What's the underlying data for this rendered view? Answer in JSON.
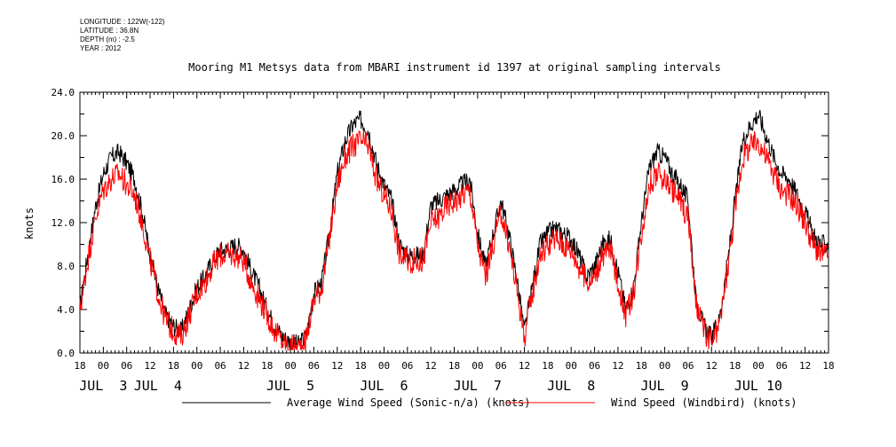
{
  "meta": {
    "longitude": "LONGITUDE : 122W(-122)",
    "latitude": "LATITUDE : 36.8N",
    "depth": "DEPTH (m) : -2.5",
    "year": "YEAR : 2012"
  },
  "chart_data": {
    "type": "line",
    "title": "Mooring M1 Metsys data from MBARI instrument id 1397 at original sampling intervals",
    "ylabel": "knots",
    "xlabel": "",
    "ylim": [
      0,
      24
    ],
    "yticks": [
      "0.0",
      "4.0",
      "8.0",
      "12.0",
      "16.0",
      "20.0",
      "24.0"
    ],
    "xlim_hours_label": "Jul 2 18:00 to Jul 10 18:00, 2012",
    "x_hour_ticks": [
      "18",
      "00",
      "06",
      "12",
      "18",
      "00",
      "06",
      "12",
      "18",
      "00",
      "06",
      "12",
      "18",
      "00",
      "06",
      "12",
      "18",
      "00",
      "06",
      "12",
      "18",
      "00",
      "06",
      "12",
      "18",
      "00",
      "06",
      "12",
      "18",
      "00",
      "06",
      "12",
      "18"
    ],
    "x_day_labels": [
      {
        "text": "JUL  3",
        "hour": 6
      },
      {
        "text": "JUL  4",
        "hour": 20
      },
      {
        "text": "JUL  5",
        "hour": 54
      },
      {
        "text": "JUL  6",
        "hour": 78
      },
      {
        "text": "JUL  7",
        "hour": 102
      },
      {
        "text": "JUL  8",
        "hour": 126
      },
      {
        "text": "JUL  9",
        "hour": 150
      },
      {
        "text": "JUL 10",
        "hour": 174
      }
    ],
    "x_hours_from_jul2_18": [
      0,
      2,
      4,
      6,
      8,
      10,
      12,
      14,
      16,
      18,
      20,
      22,
      24,
      26,
      28,
      30,
      32,
      34,
      36,
      38,
      40,
      42,
      44,
      46,
      48,
      50,
      52,
      54,
      56,
      58,
      60,
      62,
      64,
      66,
      68,
      70,
      72,
      74,
      76,
      78,
      80,
      82,
      84,
      86,
      88,
      90,
      92,
      94,
      96,
      98,
      100,
      102,
      104,
      106,
      108,
      110,
      112,
      114,
      116,
      118,
      120,
      122,
      124,
      126,
      128,
      130,
      132,
      134,
      136,
      138,
      140,
      142,
      144,
      146,
      148,
      150,
      152,
      154,
      156,
      158,
      160,
      162,
      164,
      166,
      168,
      170,
      172,
      174,
      176,
      178,
      180,
      182,
      184,
      186,
      188,
      190,
      192
    ],
    "series": [
      {
        "name": "Average Wind Speed (Sonic-n/a) (knots)",
        "color": "#000000",
        "values": [
          4.2,
          9.0,
          13.5,
          16.5,
          18.0,
          18.5,
          17.5,
          16.0,
          13.0,
          9.0,
          6.0,
          3.5,
          2.5,
          2.0,
          4.0,
          6.0,
          7.0,
          8.5,
          9.5,
          9.5,
          10.0,
          9.5,
          7.5,
          6.0,
          4.0,
          2.5,
          1.5,
          1.0,
          0.8,
          1.5,
          5.5,
          6.5,
          11.0,
          16.5,
          19.5,
          21.0,
          21.5,
          20.5,
          17.5,
          15.5,
          14.0,
          10.0,
          9.0,
          9.0,
          9.0,
          13.5,
          14.0,
          14.5,
          15.0,
          15.5,
          16.0,
          11.0,
          8.0,
          11.0,
          14.0,
          11.0,
          7.0,
          2.0,
          6.0,
          10.0,
          11.0,
          11.5,
          11.0,
          10.5,
          9.0,
          7.0,
          8.0,
          10.0,
          10.5,
          7.5,
          4.0,
          6.0,
          12.0,
          17.0,
          18.5,
          18.0,
          16.5,
          15.5,
          14.0,
          5.0,
          2.5,
          1.5,
          3.0,
          8.0,
          14.0,
          19.5,
          21.0,
          22.0,
          20.0,
          18.0,
          16.5,
          16.0,
          14.5,
          13.0,
          11.0,
          10.0,
          10.0
        ]
      },
      {
        "name": "Wind Speed (Windbird) (knots)",
        "color": "#ff0000",
        "values": [
          4.0,
          8.5,
          12.5,
          15.0,
          16.0,
          16.5,
          15.5,
          14.5,
          12.0,
          8.5,
          5.5,
          3.0,
          2.0,
          1.5,
          3.5,
          5.5,
          6.5,
          8.0,
          9.0,
          9.0,
          9.0,
          8.5,
          6.5,
          5.0,
          3.5,
          2.0,
          1.0,
          0.5,
          0.5,
          1.2,
          5.0,
          6.0,
          10.5,
          15.5,
          18.0,
          19.0,
          19.5,
          19.0,
          16.0,
          14.5,
          13.0,
          9.0,
          8.5,
          8.5,
          8.5,
          12.0,
          12.5,
          13.5,
          14.0,
          14.5,
          15.0,
          10.0,
          7.0,
          10.0,
          13.0,
          10.0,
          6.0,
          1.5,
          5.5,
          9.0,
          10.0,
          10.5,
          10.0,
          9.5,
          8.0,
          6.5,
          7.0,
          9.0,
          9.5,
          6.5,
          3.5,
          5.5,
          11.0,
          15.5,
          16.5,
          16.0,
          15.0,
          14.0,
          12.5,
          4.5,
          2.0,
          1.0,
          2.5,
          7.5,
          13.0,
          18.0,
          19.0,
          19.5,
          18.0,
          16.5,
          15.0,
          14.5,
          13.5,
          12.0,
          10.0,
          9.0,
          9.0
        ]
      }
    ],
    "legend_placement": "bottom"
  }
}
